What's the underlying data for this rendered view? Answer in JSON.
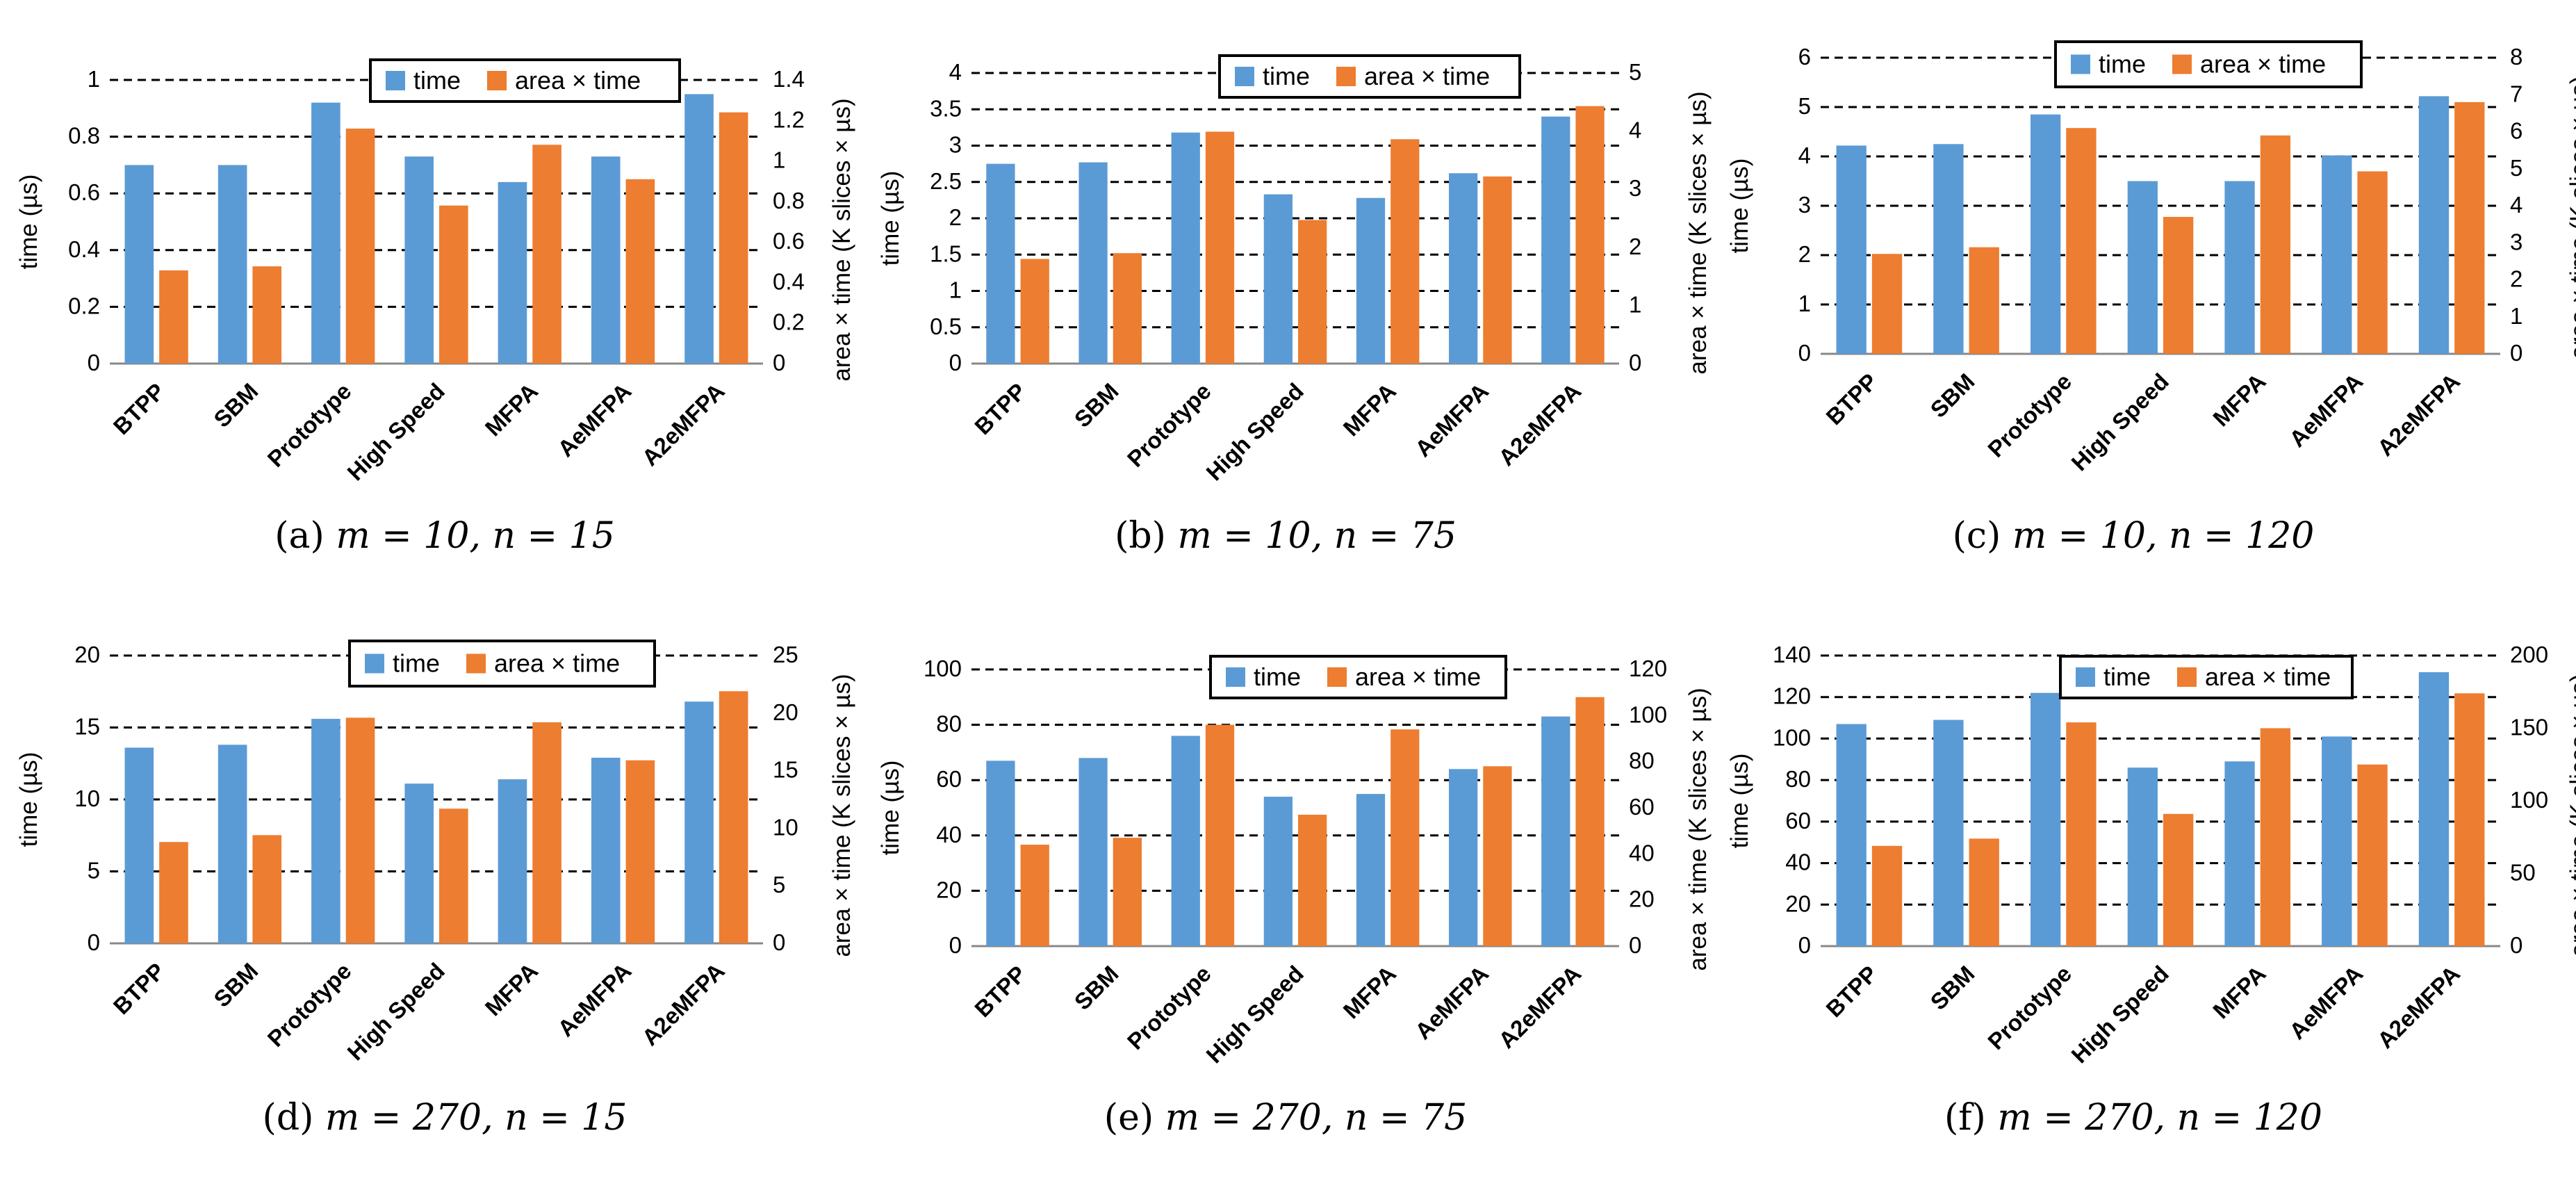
{
  "colors": {
    "time": "#5B9BD5",
    "area_time": "#ED7D31",
    "grid": "#000000"
  },
  "chart_data": [
    {
      "type": "bar",
      "caption": {
        "label": "(a)",
        "math": "m = 10, n = 15"
      },
      "categories": [
        "BTPP",
        "SBM",
        "Prototype",
        "High Speed",
        "MFPA",
        "AeMFPA",
        "A2eMFPA"
      ],
      "series": [
        {
          "name": "time",
          "axis": "left",
          "values": [
            0.7,
            0.7,
            0.92,
            0.73,
            0.64,
            0.73,
            0.95
          ]
        },
        {
          "name": "area × time",
          "axis": "right",
          "values": [
            0.46,
            0.48,
            1.16,
            0.78,
            1.08,
            0.91,
            1.24
          ]
        }
      ],
      "left_axis": {
        "label": "time (µs)",
        "min": 0,
        "max": 1,
        "step": 0.2,
        "tick_labels": [
          "0",
          "0.2",
          "0.4",
          "0.6",
          "0.8",
          "1"
        ]
      },
      "right_axis": {
        "label": "area × time (K slices × µs)",
        "min": 0,
        "max": 1.4,
        "step": 0.2,
        "tick_labels": [
          "0",
          "0.2",
          "0.4",
          "0.6",
          "0.8",
          "1",
          "1.2",
          "1.4"
        ]
      },
      "legend": {
        "position": "top-right",
        "labels": [
          "time",
          "area × time"
        ]
      },
      "grid": true
    },
    {
      "type": "bar",
      "caption": {
        "label": "(b)",
        "math": "m = 10, n = 75"
      },
      "categories": [
        "BTPP",
        "SBM",
        "Prototype",
        "High Speed",
        "MFPA",
        "AeMFPA",
        "A2eMFPA"
      ],
      "series": [
        {
          "name": "time",
          "axis": "left",
          "values": [
            2.75,
            2.77,
            3.18,
            2.33,
            2.28,
            2.62,
            3.4
          ]
        },
        {
          "name": "area × time",
          "axis": "right",
          "values": [
            1.8,
            1.9,
            3.99,
            2.47,
            3.86,
            3.22,
            4.43
          ]
        }
      ],
      "left_axis": {
        "label": "time (µs)",
        "min": 0,
        "max": 4,
        "step": 0.5,
        "tick_labels": [
          "0",
          "0.5",
          "1",
          "1.5",
          "2",
          "2.5",
          "3",
          "3.5",
          "4"
        ]
      },
      "right_axis": {
        "label": "area × time (K slices × µs)",
        "min": 0,
        "max": 5,
        "step": 1,
        "tick_labels": [
          "0",
          "1",
          "2",
          "3",
          "4",
          "5"
        ]
      },
      "legend": {
        "position": "top-right",
        "labels": [
          "time",
          "area × time"
        ]
      },
      "grid": true
    },
    {
      "type": "bar",
      "caption": {
        "label": "(c)",
        "math": "m = 10, n = 120"
      },
      "categories": [
        "BTPP",
        "SBM",
        "Prototype",
        "High Speed",
        "MFPA",
        "AeMFPA",
        "A2eMFPA"
      ],
      "series": [
        {
          "name": "time",
          "axis": "left",
          "values": [
            4.22,
            4.25,
            4.85,
            3.5,
            3.5,
            4.02,
            5.22
          ]
        },
        {
          "name": "area × time",
          "axis": "right",
          "values": [
            2.7,
            2.88,
            6.1,
            3.7,
            5.9,
            4.93,
            6.8
          ]
        }
      ],
      "left_axis": {
        "label": "time (µs)",
        "min": 0,
        "max": 6,
        "step": 1,
        "tick_labels": [
          "0",
          "1",
          "2",
          "3",
          "4",
          "5",
          "6"
        ]
      },
      "right_axis": {
        "label": "area × time (K slices × µs)",
        "min": 0,
        "max": 8,
        "step": 1,
        "tick_labels": [
          "0",
          "1",
          "2",
          "3",
          "4",
          "5",
          "6",
          "7",
          "8"
        ]
      },
      "legend": {
        "position": "top-right",
        "labels": [
          "time",
          "area × time"
        ]
      },
      "grid": true
    },
    {
      "type": "bar",
      "caption": {
        "label": "(d)",
        "math": "m = 270, n = 15"
      },
      "categories": [
        "BTPP",
        "SBM",
        "Prototype",
        "High Speed",
        "MFPA",
        "AeMFPA",
        "A2eMFPA"
      ],
      "series": [
        {
          "name": "time",
          "axis": "left",
          "values": [
            13.6,
            13.8,
            15.6,
            11.1,
            11.4,
            12.9,
            16.8
          ]
        },
        {
          "name": "area × time",
          "axis": "right",
          "values": [
            8.8,
            9.4,
            19.6,
            11.7,
            19.2,
            15.9,
            21.9
          ]
        }
      ],
      "left_axis": {
        "label": "time (µs)",
        "min": 0,
        "max": 20,
        "step": 5,
        "tick_labels": [
          "0",
          "5",
          "10",
          "15",
          "20"
        ]
      },
      "right_axis": {
        "label": "area × time (K slices × µs)",
        "min": 0,
        "max": 25,
        "step": 5,
        "tick_labels": [
          "0",
          "5",
          "10",
          "15",
          "20",
          "25"
        ]
      },
      "legend": {
        "position": "top-right",
        "labels": [
          "time",
          "area × time"
        ]
      },
      "grid": true
    },
    {
      "type": "bar",
      "caption": {
        "label": "(e)",
        "math": "m = 270, n = 75"
      },
      "categories": [
        "BTPP",
        "SBM",
        "Prototype",
        "High Speed",
        "MFPA",
        "AeMFPA",
        "A2eMFPA"
      ],
      "series": [
        {
          "name": "time",
          "axis": "left",
          "values": [
            67,
            68,
            76,
            54,
            55,
            64,
            83
          ]
        },
        {
          "name": "area × time",
          "axis": "right",
          "values": [
            44,
            47,
            96,
            57,
            94,
            78,
            108
          ]
        }
      ],
      "left_axis": {
        "label": "time (µs)",
        "min": 0,
        "max": 100,
        "step": 20,
        "tick_labels": [
          "0",
          "20",
          "40",
          "60",
          "80",
          "100"
        ]
      },
      "right_axis": {
        "label": "area × time (K slices × µs)",
        "min": 0,
        "max": 120,
        "step": 20,
        "tick_labels": [
          "0",
          "20",
          "40",
          "60",
          "80",
          "100",
          "120"
        ]
      },
      "legend": {
        "position": "top-right",
        "labels": [
          "time",
          "area × time"
        ]
      },
      "grid": true
    },
    {
      "type": "bar",
      "caption": {
        "label": "(f)",
        "math": "m = 270, n = 120"
      },
      "categories": [
        "BTPP",
        "SBM",
        "Prototype",
        "High Speed",
        "MFPA",
        "AeMFPA",
        "A2eMFPA"
      ],
      "series": [
        {
          "name": "time",
          "axis": "left",
          "values": [
            107,
            109,
            122,
            86,
            89,
            101,
            132
          ]
        },
        {
          "name": "area × time",
          "axis": "right",
          "values": [
            69,
            74,
            154,
            91,
            150,
            125,
            174
          ]
        }
      ],
      "left_axis": {
        "label": "time (µs)",
        "min": 0,
        "max": 140,
        "step": 20,
        "tick_labels": [
          "0",
          "20",
          "40",
          "60",
          "80",
          "100",
          "120",
          "140"
        ]
      },
      "right_axis": {
        "label": "area × time (K slices × µs)",
        "min": 0,
        "max": 200,
        "step": 50,
        "tick_labels": [
          "0",
          "50",
          "100",
          "150",
          "200"
        ]
      },
      "legend": {
        "position": "top-right",
        "labels": [
          "time",
          "area × time"
        ]
      },
      "grid": true
    }
  ]
}
